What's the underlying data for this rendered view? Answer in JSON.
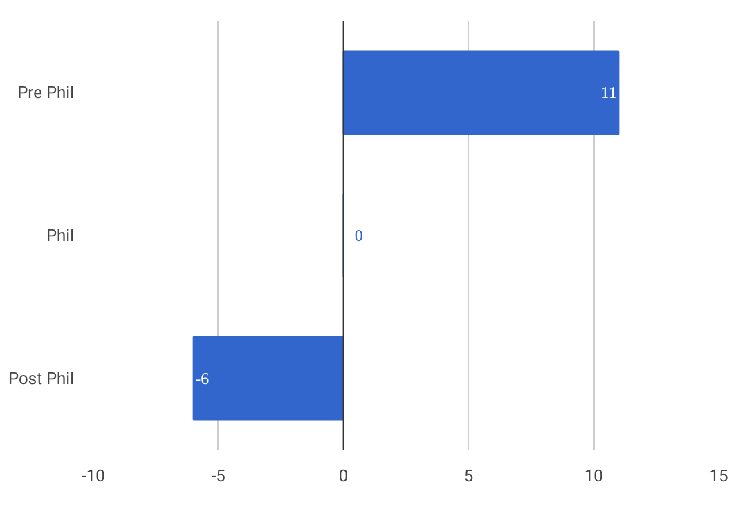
{
  "chart_data": {
    "type": "bar",
    "orientation": "horizontal",
    "categories": [
      "Pre Phil",
      "Phil",
      "Post Phil"
    ],
    "values": [
      11,
      0,
      -6
    ],
    "color": "#3366cc",
    "xlim": [
      -10,
      15
    ],
    "xticks": [
      -10,
      -5,
      0,
      5,
      10,
      15
    ],
    "grid": "x",
    "data_labels": true
  }
}
